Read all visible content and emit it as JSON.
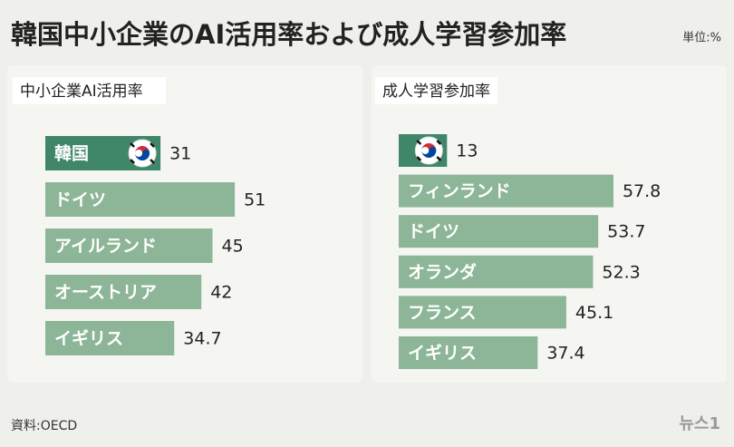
{
  "title": "韓国中小企業のAI活用率および成人学習参加率",
  "unit": "単位:%",
  "source": "資料:OECD",
  "logo": "뉴스1",
  "chart_data": [
    {
      "type": "bar",
      "orientation": "horizontal",
      "title": "中小企業AI活用率",
      "categories": [
        "韓国",
        "ドイツ",
        "アイルランド",
        "オーストリア",
        "イギリス"
      ],
      "values": [
        31,
        51,
        45,
        42,
        34.7
      ],
      "colors": [
        "#3f8768",
        "#8cb697",
        "#8cb697",
        "#8cb697",
        "#8cb697"
      ]
    },
    {
      "type": "bar",
      "orientation": "horizontal",
      "title": "成人学習参加率",
      "categories": [
        null,
        "フィンランド",
        "ドイツ",
        "オランダ",
        "フランス",
        "イギリス"
      ],
      "values": [
        13,
        57.8,
        53.7,
        52.3,
        45.1,
        37.4
      ],
      "colors": [
        "#3f8768",
        "#8cb697",
        "#8cb697",
        "#8cb697",
        "#8cb697",
        "#8cb697"
      ]
    }
  ]
}
